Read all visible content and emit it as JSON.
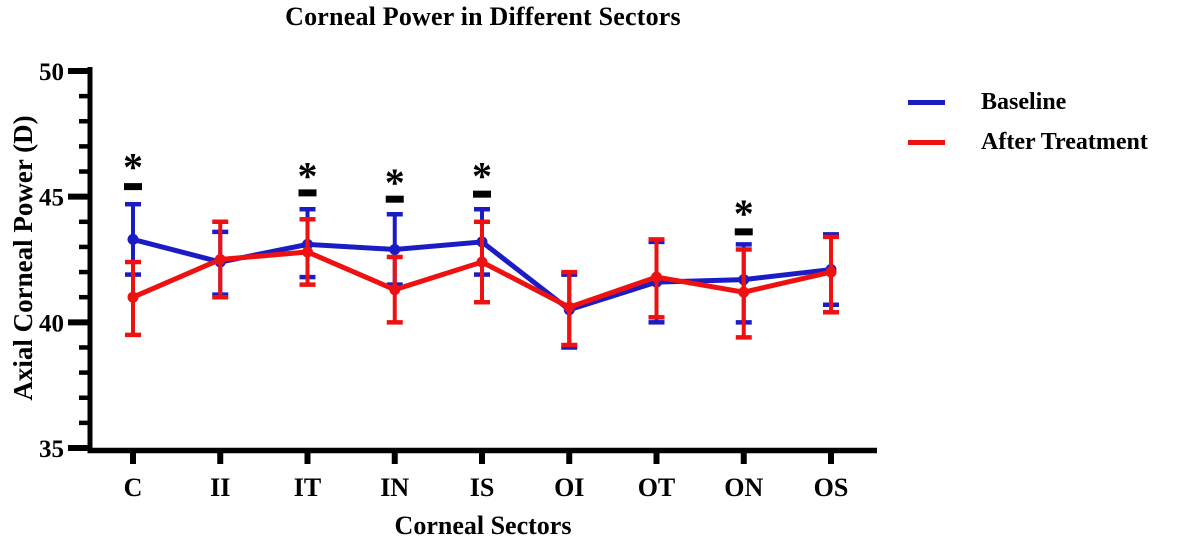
{
  "figure": {
    "title": "Corneal Power in Different Sectors",
    "x_axis_label": "Corneal Sectors",
    "y_axis_label": "Axial Corneal Power (D)"
  },
  "legend": {
    "items": [
      {
        "label": "Baseline",
        "color": "#1c1cc4"
      },
      {
        "label": "After Treatment",
        "color": "#ee1111"
      }
    ]
  },
  "chart_data": {
    "type": "line",
    "title": "Corneal Power in Different Sectors",
    "xlabel": "Corneal Sectors",
    "ylabel": "Axial Corneal Power (D)",
    "categories": [
      "C",
      "II",
      "IT",
      "IN",
      "IS",
      "OI",
      "OT",
      "ON",
      "OS"
    ],
    "ylim": [
      35,
      50
    ],
    "yticks_major": [
      50,
      45,
      40,
      35
    ],
    "ytick_minor_step": 1,
    "grid": false,
    "legend_position": "right",
    "error_bars": "sd",
    "series": [
      {
        "name": "Baseline",
        "color": "#1c1cc4",
        "values": [
          43.3,
          42.4,
          43.1,
          42.9,
          43.2,
          40.5,
          41.6,
          41.7,
          42.1
        ],
        "err_lo": [
          41.9,
          41.1,
          41.8,
          41.5,
          41.9,
          39.0,
          40.0,
          40.0,
          40.7
        ],
        "err_hi": [
          44.7,
          43.6,
          44.5,
          44.3,
          44.5,
          41.9,
          43.2,
          43.1,
          43.5
        ]
      },
      {
        "name": "After Treatment",
        "color": "#ee1111",
        "values": [
          41.0,
          42.5,
          42.8,
          41.3,
          42.4,
          40.6,
          41.8,
          41.2,
          42.0
        ],
        "err_lo": [
          39.5,
          41.0,
          41.5,
          40.0,
          40.8,
          39.1,
          40.2,
          39.4,
          40.4
        ],
        "err_hi": [
          42.4,
          44.0,
          44.1,
          42.6,
          44.0,
          42.0,
          43.3,
          42.9,
          43.4
        ]
      }
    ],
    "significance_markers": {
      "symbol": "*",
      "categories": [
        "C",
        "IT",
        "IN",
        "IS",
        "ON"
      ],
      "bar_y": [
        45.4,
        45.15,
        44.9,
        45.1,
        43.6
      ],
      "star_y": [
        46.35,
        46.0,
        45.75,
        46.0,
        44.5
      ]
    }
  }
}
